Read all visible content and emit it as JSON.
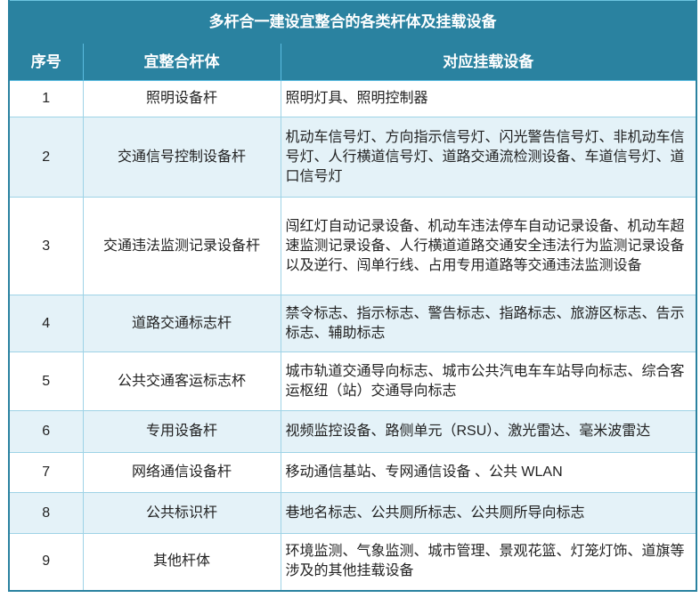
{
  "table": {
    "title": "多杆合一建设宜整合的各类杆体及挂载设备",
    "headers": [
      "序号",
      "宜整合杆体",
      "对应挂载设备"
    ],
    "colors": {
      "header_bg": "#2a82a0",
      "alt_row_bg": "#e4f2f8",
      "border": "#9ed3e6"
    },
    "rows": [
      {
        "num": "1",
        "name": "照明设备杆",
        "desc": "照明灯具、照明控制器"
      },
      {
        "num": "2",
        "name": "交通信号控制设备杆",
        "desc": "机动车信号灯、方向指示信号灯、闪光警告信号灯、非机动车信号灯、人行横道信号灯、道路交通流检测设备、车道信号灯、道口信号灯"
      },
      {
        "num": "3",
        "name": "交通违法监测记录设备杆",
        "desc": "闯红灯自动记录设备、机动车违法停车自动记录设备、机动车超速监测记录设备、人行横道道路交通安全违法行为监测记录设备以及逆行、闯单行线、占用专用道路等交通违法监测设备"
      },
      {
        "num": "4",
        "name": "道路交通标志杆",
        "desc": "禁令标志、指示标志、警告标志、指路标志、旅游区标志、告示标志、辅助标志"
      },
      {
        "num": "5",
        "name": "公共交通客运标志杯",
        "desc": "城市轨道交通导向标志、城市公共汽电车车站导向标志、综合客运枢纽（站）交通导向标志"
      },
      {
        "num": "6",
        "name": "专用设备杆",
        "desc": "视频监控设备、路侧单元（RSU）、激光雷达、毫米波雷达"
      },
      {
        "num": "7",
        "name": "网络通信设备杆",
        "desc": "移动通信基站、专网通信设备 、公共 WLAN"
      },
      {
        "num": "8",
        "name": "公共标识杆",
        "desc": "巷地名标志、公共厕所标志、公共厕所导向标志"
      },
      {
        "num": "9",
        "name": "其他杆体",
        "desc": "环境监测、气象监测、城市管理、景观花篮、灯笼灯饰、道旗等涉及的其他挂载设备"
      }
    ]
  }
}
